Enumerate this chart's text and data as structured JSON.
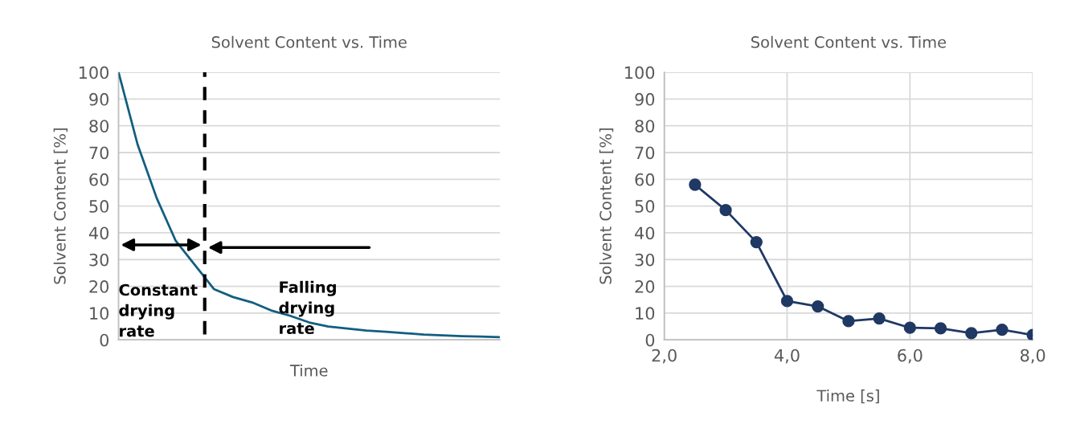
{
  "chart_data": [
    {
      "type": "line",
      "title": "Solvent Content vs. Time",
      "xlabel": "Time",
      "ylabel": "Solvent Content [%]",
      "categories": [
        null,
        null,
        null,
        null,
        null,
        null,
        null,
        null,
        null,
        null,
        null,
        null,
        null,
        null,
        null,
        null,
        null,
        null,
        null,
        null,
        null
      ],
      "series": [
        {
          "color": "#125e80",
          "values": [
            100,
            73,
            53,
            37,
            28,
            19,
            16,
            14,
            11,
            9,
            6.5,
            5,
            4.2,
            3.5,
            3,
            2.5,
            2,
            1.7,
            1.4,
            1.2,
            1
          ]
        }
      ],
      "ylim": [
        0,
        100
      ],
      "yticks": [
        0,
        10,
        20,
        30,
        40,
        50,
        60,
        70,
        80,
        90,
        100
      ],
      "grid": "y",
      "tick_labels": "y",
      "marker": "none",
      "annotations": [
        "Constant drying rate",
        "Falling drying rate"
      ]
    },
    {
      "type": "line",
      "title": "Solvent Content vs. Time",
      "xlabel": "Time [s]",
      "ylabel": "Solvent Content [%]",
      "x": [
        2.5,
        3,
        3.5,
        4,
        4.5,
        5,
        5.5,
        6,
        6.5,
        7,
        7.5,
        8
      ],
      "series": [
        {
          "color": "#1f3864",
          "values": [
            58,
            48.5,
            36.5,
            14.5,
            12.5,
            7,
            8,
            4.5,
            4.3,
            2.5,
            3.8,
            1.8
          ]
        }
      ],
      "xlim": [
        2,
        8
      ],
      "xticks": [
        {
          "value": 2,
          "label": "2,0"
        },
        {
          "value": 4,
          "label": "4,0"
        },
        {
          "value": 6,
          "label": "6,0"
        },
        {
          "value": 8,
          "label": "8,0"
        }
      ],
      "ylim": [
        0,
        100
      ],
      "yticks": [
        0,
        10,
        20,
        30,
        40,
        50,
        60,
        70,
        80,
        90,
        100
      ],
      "grid": true,
      "marker": "circle"
    }
  ]
}
